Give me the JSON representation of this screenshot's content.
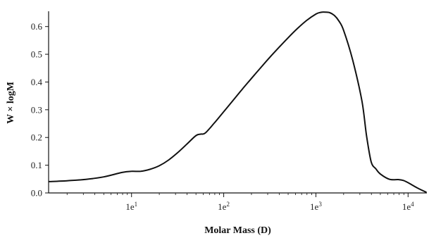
{
  "chart_data": {
    "type": "line",
    "title": "",
    "xlabel": "Molar Mass (D)",
    "ylabel": "W × logM",
    "x_scale": "log",
    "xlim": [
      1.26,
      16000
    ],
    "ylim": [
      0.0,
      0.65
    ],
    "grid": false,
    "x_ticks": [
      {
        "value": 10,
        "label": "1e",
        "sup": "1"
      },
      {
        "value": 100,
        "label": "1e",
        "sup": "2"
      },
      {
        "value": 1000,
        "label": "1e",
        "sup": "3"
      },
      {
        "value": 10000,
        "label": "1e",
        "sup": "4"
      }
    ],
    "y_ticks": [
      {
        "value": 0.0,
        "label": "0.0"
      },
      {
        "value": 0.1,
        "label": "0.1"
      },
      {
        "value": 0.2,
        "label": "0.2"
      },
      {
        "value": 0.3,
        "label": "0.3"
      },
      {
        "value": 0.4,
        "label": "0.4"
      },
      {
        "value": 0.5,
        "label": "0.5"
      },
      {
        "value": 0.6,
        "label": "0.6"
      }
    ],
    "series": [
      {
        "color": "#111111",
        "x": [
          1.26,
          2.0,
          3.2,
          5.0,
          7.9,
          10.0,
          12.6,
          15.8,
          20.0,
          25.1,
          31.6,
          39.8,
          50.1,
          56.2,
          63.1,
          79.4,
          100,
          126,
          158,
          200,
          251,
          316,
          398,
          501,
          631,
          794,
          1000,
          1122,
          1259,
          1413,
          1585,
          1778,
          2000,
          2512,
          3162,
          3548,
          3981,
          4467,
          5012,
          6310,
          7943,
          8913,
          10000,
          12589,
          15849
        ],
        "y": [
          0.041,
          0.044,
          0.049,
          0.058,
          0.074,
          0.078,
          0.078,
          0.085,
          0.098,
          0.118,
          0.145,
          0.176,
          0.207,
          0.212,
          0.216,
          0.253,
          0.293,
          0.333,
          0.373,
          0.413,
          0.451,
          0.489,
          0.525,
          0.56,
          0.593,
          0.622,
          0.645,
          0.651,
          0.652,
          0.65,
          0.64,
          0.62,
          0.586,
          0.478,
          0.33,
          0.205,
          0.112,
          0.087,
          0.068,
          0.049,
          0.048,
          0.045,
          0.037,
          0.018,
          0.002
        ]
      }
    ]
  }
}
